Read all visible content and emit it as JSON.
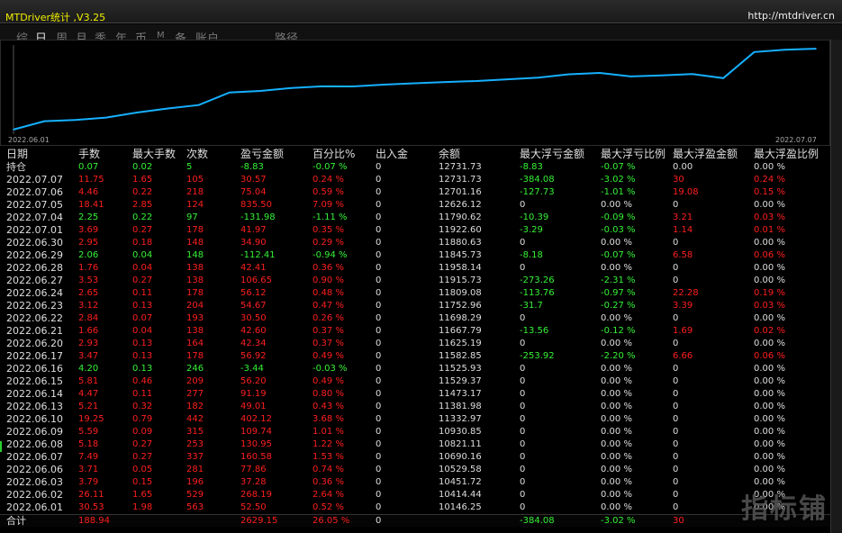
{
  "window": {
    "title": "MTDriver统计 ,V3.25",
    "url": "http://mtdriver.cn"
  },
  "tabs": [
    "综",
    "日",
    "周",
    "月",
    "季",
    "年",
    "币",
    "M",
    "备",
    "账户",
    "路径"
  ],
  "active_tab": "日",
  "chart_data": {
    "type": "line",
    "x_start_label": "2022.06.01",
    "x_end_label": "2022.07.07",
    "series": [
      {
        "color": "#16b0ff",
        "values": [
          10146.25,
          10414.44,
          10451.72,
          10529.58,
          10690.16,
          10821.11,
          10930.85,
          11332.97,
          11381.98,
          11473.17,
          11529.37,
          11525.93,
          11582.85,
          11625.19,
          11667.79,
          11698.29,
          11752.96,
          11809.08,
          11915.73,
          11958.14,
          11845.73,
          11880.63,
          11922.6,
          11790.62,
          12626.12,
          12701.16,
          12731.73
        ]
      }
    ]
  },
  "table": {
    "columns": [
      "日期",
      "手数",
      "最大手数",
      "次数",
      "盈亏金额",
      "百分比%",
      "出入金",
      "余额",
      "最大浮亏金额",
      "最大浮亏比例",
      "最大浮盈金额",
      "最大浮盈比例"
    ],
    "position_row": {
      "label": "持仓",
      "cells": [
        "0.07",
        "0.02",
        "5",
        "-8.83",
        "-0.07 %",
        "0",
        "12731.73",
        "-8.83",
        "-0.07 %",
        "0.00",
        "0.00 %"
      ],
      "colors": [
        "g",
        "g",
        "g",
        "g",
        "g",
        "w",
        "w",
        "g",
        "g",
        "w",
        "w"
      ]
    },
    "rows": [
      {
        "date": "2022.07.07",
        "cells": [
          "11.75",
          "1.65",
          "105",
          "30.57",
          "0.24 %",
          "0",
          "12731.73",
          "-384.08",
          "-3.02 %",
          "30",
          "0.24 %"
        ],
        "colors": [
          "r",
          "r",
          "r",
          "r",
          "r",
          "w",
          "w",
          "g",
          "g",
          "r",
          "r"
        ]
      },
      {
        "date": "2022.07.06",
        "cells": [
          "4.46",
          "0.22",
          "218",
          "75.04",
          "0.59 %",
          "0",
          "12701.16",
          "-127.73",
          "-1.01 %",
          "19.08",
          "0.15 %"
        ],
        "colors": [
          "r",
          "r",
          "r",
          "r",
          "r",
          "w",
          "w",
          "g",
          "g",
          "r",
          "r"
        ]
      },
      {
        "date": "2022.07.05",
        "cells": [
          "18.41",
          "2.85",
          "124",
          "835.50",
          "7.09 %",
          "0",
          "12626.12",
          "0",
          "0.00 %",
          "0",
          "0.00 %"
        ],
        "colors": [
          "r",
          "r",
          "r",
          "r",
          "r",
          "w",
          "w",
          "w",
          "w",
          "w",
          "w"
        ]
      },
      {
        "date": "2022.07.04",
        "cells": [
          "2.25",
          "0.22",
          "97",
          "-131.98",
          "-1.11 %",
          "0",
          "11790.62",
          "-10.39",
          "-0.09 %",
          "3.21",
          "0.03 %"
        ],
        "colors": [
          "g",
          "g",
          "g",
          "g",
          "g",
          "w",
          "w",
          "g",
          "g",
          "r",
          "r"
        ]
      },
      {
        "date": "2022.07.01",
        "cells": [
          "3.69",
          "0.27",
          "178",
          "41.97",
          "0.35 %",
          "0",
          "11922.60",
          "-3.29",
          "-0.03 %",
          "1.14",
          "0.01 %"
        ],
        "colors": [
          "r",
          "r",
          "r",
          "r",
          "r",
          "w",
          "w",
          "g",
          "g",
          "r",
          "r"
        ]
      },
      {
        "date": "2022.06.30",
        "cells": [
          "2.95",
          "0.18",
          "148",
          "34.90",
          "0.29 %",
          "0",
          "11880.63",
          "0",
          "0.00 %",
          "0",
          "0.00 %"
        ],
        "colors": [
          "r",
          "r",
          "r",
          "r",
          "r",
          "w",
          "w",
          "w",
          "w",
          "w",
          "w"
        ]
      },
      {
        "date": "2022.06.29",
        "cells": [
          "2.06",
          "0.04",
          "148",
          "-112.41",
          "-0.94 %",
          "0",
          "11845.73",
          "-8.18",
          "-0.07 %",
          "6.58",
          "0.06 %"
        ],
        "colors": [
          "g",
          "g",
          "g",
          "g",
          "g",
          "w",
          "w",
          "g",
          "g",
          "r",
          "r"
        ]
      },
      {
        "date": "2022.06.28",
        "cells": [
          "1.76",
          "0.04",
          "138",
          "42.41",
          "0.36 %",
          "0",
          "11958.14",
          "0",
          "0.00 %",
          "0",
          "0.00 %"
        ],
        "colors": [
          "r",
          "r",
          "r",
          "r",
          "r",
          "w",
          "w",
          "w",
          "w",
          "w",
          "w"
        ]
      },
      {
        "date": "2022.06.27",
        "cells": [
          "3.53",
          "0.27",
          "138",
          "106.65",
          "0.90 %",
          "0",
          "11915.73",
          "-273.26",
          "-2.31 %",
          "0",
          "0.00 %"
        ],
        "colors": [
          "r",
          "r",
          "r",
          "r",
          "r",
          "w",
          "w",
          "g",
          "g",
          "w",
          "w"
        ]
      },
      {
        "date": "2022.06.24",
        "cells": [
          "2.65",
          "0.11",
          "178",
          "56.12",
          "0.48 %",
          "0",
          "11809.08",
          "-113.76",
          "-0.97 %",
          "22.28",
          "0.19 %"
        ],
        "colors": [
          "r",
          "r",
          "r",
          "r",
          "r",
          "w",
          "w",
          "g",
          "g",
          "r",
          "r"
        ]
      },
      {
        "date": "2022.06.23",
        "cells": [
          "3.12",
          "0.13",
          "204",
          "54.67",
          "0.47 %",
          "0",
          "11752.96",
          "-31.7",
          "-0.27 %",
          "3.39",
          "0.03 %"
        ],
        "colors": [
          "r",
          "r",
          "r",
          "r",
          "r",
          "w",
          "w",
          "g",
          "g",
          "r",
          "r"
        ]
      },
      {
        "date": "2022.06.22",
        "cells": [
          "2.84",
          "0.07",
          "193",
          "30.50",
          "0.26 %",
          "0",
          "11698.29",
          "0",
          "0.00 %",
          "0",
          "0.00 %"
        ],
        "colors": [
          "r",
          "r",
          "r",
          "r",
          "r",
          "w",
          "w",
          "w",
          "w",
          "w",
          "w"
        ]
      },
      {
        "date": "2022.06.21",
        "cells": [
          "1.66",
          "0.04",
          "138",
          "42.60",
          "0.37 %",
          "0",
          "11667.79",
          "-13.56",
          "-0.12 %",
          "1.69",
          "0.02 %"
        ],
        "colors": [
          "r",
          "r",
          "r",
          "r",
          "r",
          "w",
          "w",
          "g",
          "g",
          "r",
          "r"
        ]
      },
      {
        "date": "2022.06.20",
        "cells": [
          "2.93",
          "0.13",
          "164",
          "42.34",
          "0.37 %",
          "0",
          "11625.19",
          "0",
          "0.00 %",
          "0",
          "0.00 %"
        ],
        "colors": [
          "r",
          "r",
          "r",
          "r",
          "r",
          "w",
          "w",
          "w",
          "w",
          "w",
          "w"
        ]
      },
      {
        "date": "2022.06.17",
        "cells": [
          "3.47",
          "0.13",
          "178",
          "56.92",
          "0.49 %",
          "0",
          "11582.85",
          "-253.92",
          "-2.20 %",
          "6.66",
          "0.06 %"
        ],
        "colors": [
          "r",
          "r",
          "r",
          "r",
          "r",
          "w",
          "w",
          "g",
          "g",
          "r",
          "r"
        ]
      },
      {
        "date": "2022.06.16",
        "cells": [
          "4.20",
          "0.13",
          "246",
          "-3.44",
          "-0.03 %",
          "0",
          "11525.93",
          "0",
          "0.00 %",
          "0",
          "0.00 %"
        ],
        "colors": [
          "g",
          "g",
          "g",
          "g",
          "g",
          "w",
          "w",
          "w",
          "w",
          "w",
          "w"
        ]
      },
      {
        "date": "2022.06.15",
        "cells": [
          "5.81",
          "0.46",
          "209",
          "56.20",
          "0.49 %",
          "0",
          "11529.37",
          "0",
          "0.00 %",
          "0",
          "0.00 %"
        ],
        "colors": [
          "r",
          "r",
          "r",
          "r",
          "r",
          "w",
          "w",
          "w",
          "w",
          "w",
          "w"
        ]
      },
      {
        "date": "2022.06.14",
        "cells": [
          "4.47",
          "0.11",
          "277",
          "91.19",
          "0.80 %",
          "0",
          "11473.17",
          "0",
          "0.00 %",
          "0",
          "0.00 %"
        ],
        "colors": [
          "r",
          "r",
          "r",
          "r",
          "r",
          "w",
          "w",
          "w",
          "w",
          "w",
          "w"
        ]
      },
      {
        "date": "2022.06.13",
        "cells": [
          "5.21",
          "0.32",
          "182",
          "49.01",
          "0.43 %",
          "0",
          "11381.98",
          "0",
          "0.00 %",
          "0",
          "0.00 %"
        ],
        "colors": [
          "r",
          "r",
          "r",
          "r",
          "r",
          "w",
          "w",
          "w",
          "w",
          "w",
          "w"
        ]
      },
      {
        "date": "2022.06.10",
        "cells": [
          "19.25",
          "0.79",
          "442",
          "402.12",
          "3.68 %",
          "0",
          "11332.97",
          "0",
          "0.00 %",
          "0",
          "0.00 %"
        ],
        "colors": [
          "r",
          "r",
          "r",
          "r",
          "r",
          "w",
          "w",
          "w",
          "w",
          "w",
          "w"
        ]
      },
      {
        "date": "2022.06.09",
        "cells": [
          "5.59",
          "0.09",
          "315",
          "109.74",
          "1.01 %",
          "0",
          "10930.85",
          "0",
          "0.00 %",
          "0",
          "0.00 %"
        ],
        "colors": [
          "r",
          "r",
          "r",
          "r",
          "r",
          "w",
          "w",
          "w",
          "w",
          "w",
          "w"
        ]
      },
      {
        "date": "2022.06.08",
        "cells": [
          "5.18",
          "0.27",
          "253",
          "130.95",
          "1.22 %",
          "0",
          "10821.11",
          "0",
          "0.00 %",
          "0",
          "0.00 %"
        ],
        "colors": [
          "r",
          "r",
          "r",
          "r",
          "r",
          "w",
          "w",
          "w",
          "w",
          "w",
          "w"
        ]
      },
      {
        "date": "2022.06.07",
        "cells": [
          "7.49",
          "0.27",
          "337",
          "160.58",
          "1.53 %",
          "0",
          "10690.16",
          "0",
          "0.00 %",
          "0",
          "0.00 %"
        ],
        "colors": [
          "r",
          "r",
          "r",
          "r",
          "r",
          "w",
          "w",
          "w",
          "w",
          "w",
          "w"
        ]
      },
      {
        "date": "2022.06.06",
        "cells": [
          "3.71",
          "0.05",
          "281",
          "77.86",
          "0.74 %",
          "0",
          "10529.58",
          "0",
          "0.00 %",
          "0",
          "0.00 %"
        ],
        "colors": [
          "r",
          "r",
          "r",
          "r",
          "r",
          "w",
          "w",
          "w",
          "w",
          "w",
          "w"
        ]
      },
      {
        "date": "2022.06.03",
        "cells": [
          "3.79",
          "0.15",
          "196",
          "37.28",
          "0.36 %",
          "0",
          "10451.72",
          "0",
          "0.00 %",
          "0",
          "0.00 %"
        ],
        "colors": [
          "r",
          "r",
          "r",
          "r",
          "r",
          "w",
          "w",
          "w",
          "w",
          "w",
          "w"
        ]
      },
      {
        "date": "2022.06.02",
        "cells": [
          "26.11",
          "1.65",
          "529",
          "268.19",
          "2.64 %",
          "0",
          "10414.44",
          "0",
          "0.00 %",
          "0",
          "0.00 %"
        ],
        "colors": [
          "r",
          "r",
          "r",
          "r",
          "r",
          "w",
          "w",
          "w",
          "w",
          "w",
          "w"
        ]
      },
      {
        "date": "2022.06.01",
        "cells": [
          "30.53",
          "1.98",
          "563",
          "52.50",
          "0.52 %",
          "0",
          "10146.25",
          "0",
          "0.00 %",
          "0",
          "0.00 %"
        ],
        "colors": [
          "r",
          "r",
          "r",
          "r",
          "r",
          "w",
          "w",
          "w",
          "w",
          "w",
          "w"
        ]
      }
    ],
    "total_row": {
      "label": "合计",
      "cells": [
        "188.94",
        "",
        "",
        "2629.15",
        "26.05 %",
        "0",
        "",
        "-384.08",
        "-3.02 %",
        "30",
        ""
      ],
      "colors": [
        "r",
        "w",
        "w",
        "r",
        "r",
        "w",
        "w",
        "g",
        "g",
        "r",
        "w"
      ]
    }
  },
  "watermark": "指标铺"
}
